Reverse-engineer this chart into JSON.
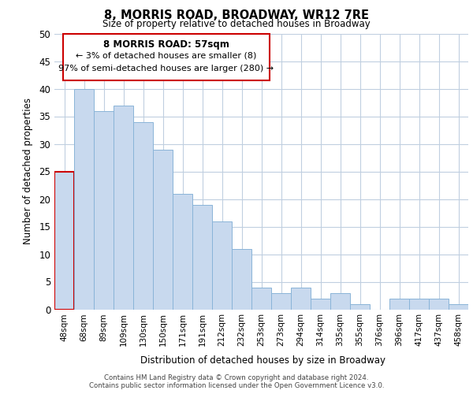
{
  "title": "8, MORRIS ROAD, BROADWAY, WR12 7RE",
  "subtitle": "Size of property relative to detached houses in Broadway",
  "xlabel": "Distribution of detached houses by size in Broadway",
  "ylabel": "Number of detached properties",
  "bar_color": "#c8d9ee",
  "bar_edge_color": "#8ab4d8",
  "background_color": "#ffffff",
  "grid_color": "#c0cfe0",
  "annotation_border_color": "#cc0000",
  "annotation_line1": "8 MORRIS ROAD: 57sqm",
  "annotation_line2": "← 3% of detached houses are smaller (8)",
  "annotation_line3": "97% of semi-detached houses are larger (280) →",
  "highlight_bar_index": 0,
  "highlight_bar_edge_color": "#cc0000",
  "categories": [
    "48sqm",
    "68sqm",
    "89sqm",
    "109sqm",
    "130sqm",
    "150sqm",
    "171sqm",
    "191sqm",
    "212sqm",
    "232sqm",
    "253sqm",
    "273sqm",
    "294sqm",
    "314sqm",
    "335sqm",
    "355sqm",
    "376sqm",
    "396sqm",
    "417sqm",
    "437sqm",
    "458sqm"
  ],
  "values": [
    25,
    40,
    36,
    37,
    34,
    29,
    21,
    19,
    16,
    11,
    4,
    3,
    4,
    2,
    3,
    1,
    0,
    2,
    2,
    2,
    1
  ],
  "ylim": [
    0,
    50
  ],
  "yticks": [
    0,
    5,
    10,
    15,
    20,
    25,
    30,
    35,
    40,
    45,
    50
  ],
  "footer_line1": "Contains HM Land Registry data © Crown copyright and database right 2024.",
  "footer_line2": "Contains public sector information licensed under the Open Government Licence v3.0."
}
